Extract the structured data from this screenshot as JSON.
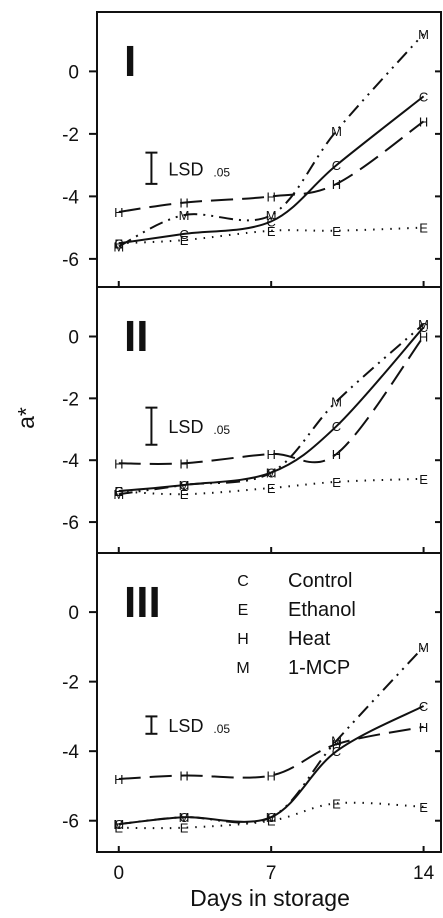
{
  "chart_data": {
    "type": "line",
    "xlabel": "Days in storage",
    "ylabel": "a*",
    "x_ticks": [
      "0",
      "7",
      "14"
    ],
    "y_ticks": [
      "0",
      "-2",
      "-4",
      "-6"
    ],
    "xlim": [
      -1,
      14.8
    ],
    "lsd_label": "LSD",
    "lsd_sub": ".05",
    "legend": [
      {
        "letter": "C",
        "name": "Control"
      },
      {
        "letter": "E",
        "name": "Ethanol"
      },
      {
        "letter": "H",
        "name": "Heat"
      },
      {
        "letter": "M",
        "name": "1-MCP"
      }
    ],
    "styles": {
      "C": {
        "dash": "none",
        "width": 2
      },
      "E": {
        "dash": "1.5 7",
        "width": 2
      },
      "H": {
        "dash": "22 9",
        "width": 2
      },
      "M": {
        "dash": "14 6 2 6 2 6",
        "width": 2
      }
    },
    "panels": [
      {
        "label": "I",
        "ylim": [
          -6.9,
          1.9
        ],
        "lsd": {
          "x": 1.5,
          "y_low": -3.6,
          "y_high": -2.6
        },
        "series": [
          {
            "key": "C",
            "x": [
              0,
              3,
              7,
              10,
              14
            ],
            "y": [
              -5.5,
              -5.2,
              -4.8,
              -3.0,
              -0.8
            ]
          },
          {
            "key": "E",
            "x": [
              0,
              3,
              7,
              10,
              14
            ],
            "y": [
              -5.5,
              -5.4,
              -5.1,
              -5.1,
              -5.0
            ]
          },
          {
            "key": "H",
            "x": [
              0,
              3,
              7,
              10,
              14
            ],
            "y": [
              -4.5,
              -4.2,
              -4.0,
              -3.6,
              -1.6
            ]
          },
          {
            "key": "M",
            "x": [
              0,
              3,
              7,
              10,
              14
            ],
            "y": [
              -5.6,
              -4.6,
              -4.6,
              -1.9,
              1.2
            ]
          }
        ]
      },
      {
        "label": "II",
        "ylim": [
          -7.0,
          1.6
        ],
        "lsd": {
          "x": 1.5,
          "y_low": -3.5,
          "y_high": -2.3
        },
        "series": [
          {
            "key": "C",
            "x": [
              0,
              3,
              7,
              10,
              14
            ],
            "y": [
              -5.0,
              -4.8,
              -4.4,
              -2.9,
              0.3
            ]
          },
          {
            "key": "E",
            "x": [
              0,
              3,
              7,
              10,
              14
            ],
            "y": [
              -5.0,
              -5.1,
              -4.9,
              -4.7,
              -4.6
            ]
          },
          {
            "key": "H",
            "x": [
              0,
              3,
              7,
              10,
              14
            ],
            "y": [
              -4.1,
              -4.1,
              -3.8,
              -3.8,
              0.0
            ]
          },
          {
            "key": "M",
            "x": [
              0,
              3,
              7,
              10,
              14
            ],
            "y": [
              -5.1,
              -4.8,
              -4.4,
              -2.1,
              0.4
            ]
          }
        ]
      },
      {
        "label": "III",
        "ylim": [
          -6.9,
          1.7
        ],
        "lsd": {
          "x": 1.5,
          "y_low": -3.5,
          "y_high": -3.0
        },
        "series": [
          {
            "key": "C",
            "x": [
              0,
              3,
              7,
              10,
              14
            ],
            "y": [
              -6.1,
              -5.9,
              -5.9,
              -4.0,
              -2.7
            ]
          },
          {
            "key": "E",
            "x": [
              0,
              3,
              7,
              10,
              14
            ],
            "y": [
              -6.2,
              -6.2,
              -6.0,
              -5.5,
              -5.6
            ]
          },
          {
            "key": "H",
            "x": [
              0,
              3,
              7,
              10,
              14
            ],
            "y": [
              -4.8,
              -4.7,
              -4.7,
              -3.8,
              -3.3
            ]
          },
          {
            "key": "M",
            "x": [
              0,
              3,
              7,
              10,
              14
            ],
            "y": [
              -6.1,
              -5.9,
              -5.9,
              -3.7,
              -1.0
            ]
          }
        ]
      }
    ]
  }
}
